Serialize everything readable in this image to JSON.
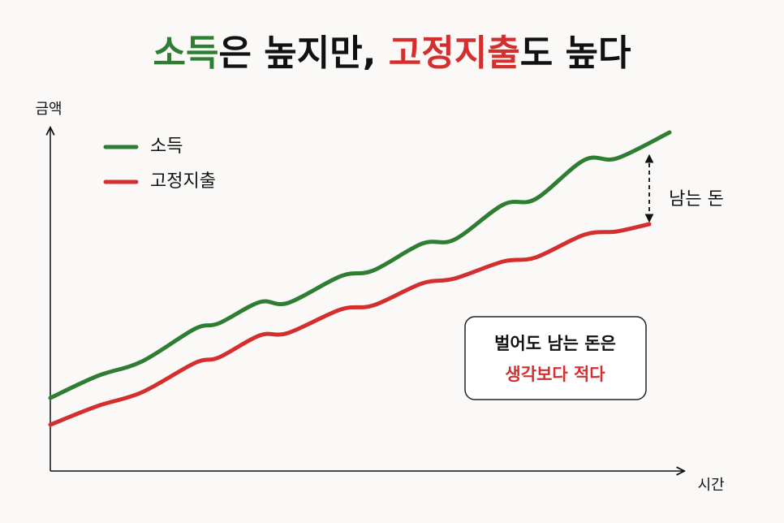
{
  "title": {
    "parts": [
      "소득",
      "은 높지만, ",
      "고정지출",
      "도 높다"
    ]
  },
  "axes": {
    "y_label": "금액",
    "x_label": "시간"
  },
  "legend": [
    "소득",
    "고정지출"
  ],
  "gap_label": "남는 돈",
  "callout": {
    "line1": "벌어도 남는 돈은",
    "line2": "생각보다 적다"
  }
}
